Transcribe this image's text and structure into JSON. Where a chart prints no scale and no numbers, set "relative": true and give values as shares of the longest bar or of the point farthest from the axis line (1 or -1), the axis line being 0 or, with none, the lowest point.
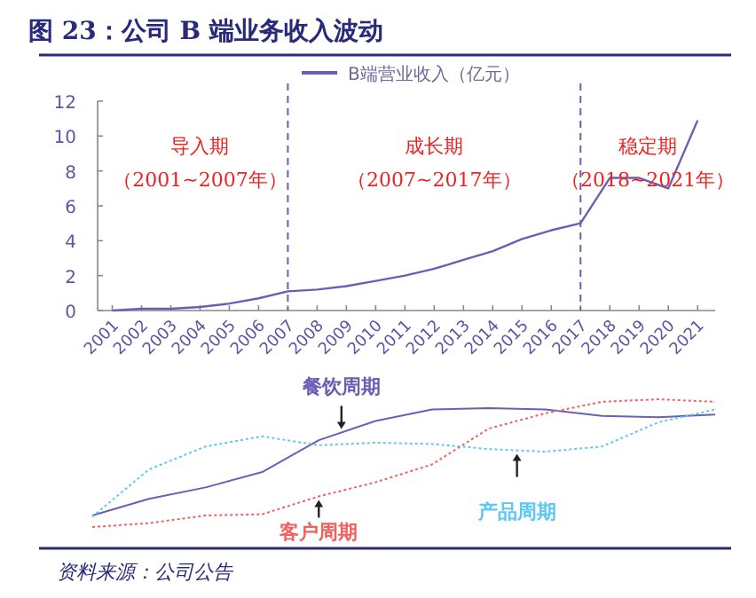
{
  "chart_data": [
    {
      "type": "line",
      "title": "图 23：公司 B 端业务收入波动",
      "x": [
        2001,
        2002,
        2003,
        2004,
        2005,
        2006,
        2007,
        2008,
        2009,
        2010,
        2011,
        2012,
        2013,
        2014,
        2015,
        2016,
        2017,
        2018,
        2019,
        2020,
        2021
      ],
      "series": [
        {
          "name": "B端营业收入（亿元）",
          "color": "#6a5fb5",
          "values": [
            0.0,
            0.1,
            0.1,
            0.2,
            0.4,
            0.7,
            1.1,
            1.2,
            1.4,
            1.7,
            2.0,
            2.4,
            2.9,
            3.4,
            4.1,
            4.6,
            5.0,
            7.6,
            7.6,
            7.0,
            10.9
          ]
        }
      ],
      "xlim": [
        2000.5,
        2021.6
      ],
      "xticks": [
        2001,
        2002,
        2003,
        2004,
        2005,
        2006,
        2007,
        2008,
        2009,
        2010,
        2011,
        2012,
        2013,
        2014,
        2015,
        2016,
        2017,
        2018,
        2019,
        2020,
        2021
      ],
      "ylim": [
        0,
        12
      ],
      "yticks": [
        0,
        2,
        4,
        6,
        8,
        10,
        12
      ],
      "legend": "top",
      "ref_lines": [
        {
          "axis": "x",
          "value": 2007,
          "color": "#6a5fb5",
          "line_style": "dashed"
        },
        {
          "axis": "x",
          "value": 2017,
          "color": "#6a5fb5",
          "line_style": "dashed"
        }
      ],
      "annotations": [
        "导入期",
        "（2001~2007年）",
        "成长期",
        "（2007~2017年）",
        "稳定期",
        "（2018~2021年）",
        "资料来源：公司公告"
      ]
    },
    {
      "type": "line",
      "relative": true,
      "categories": [
        null,
        null,
        null,
        null,
        null,
        null,
        null,
        null,
        null,
        null,
        null,
        null
      ],
      "series": [
        {
          "name": "餐饮周期",
          "color": "#6a5fb5",
          "line_style": "solid",
          "values": [
            0.09,
            0.22,
            0.31,
            0.43,
            0.68,
            0.83,
            0.92,
            0.93,
            0.92,
            0.87,
            0.86,
            0.88
          ]
        },
        {
          "name": "产品周期",
          "color": "#5ec8f0",
          "line_style": "dotted",
          "values": [
            0.08,
            0.45,
            0.63,
            0.71,
            0.64,
            0.66,
            0.65,
            0.61,
            0.59,
            0.63,
            0.82,
            0.92
          ]
        },
        {
          "name": "客户周期",
          "color": "#f26060",
          "line_style": "dotted",
          "values": [
            0,
            0.03,
            0.09,
            0.1,
            0.24,
            0.35,
            0.49,
            0.77,
            0.89,
            0.98,
            1,
            0.98
          ]
        }
      ]
    }
  ]
}
